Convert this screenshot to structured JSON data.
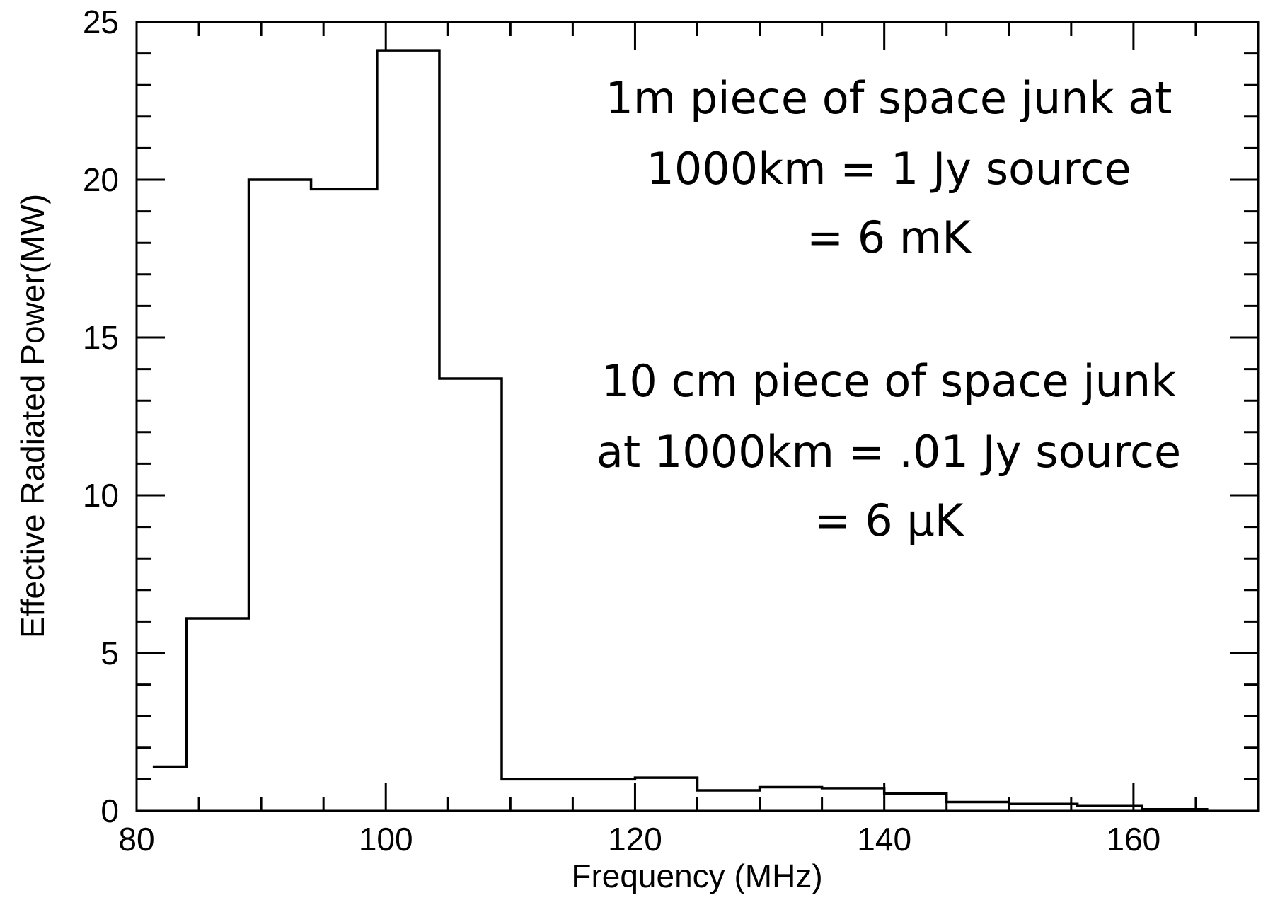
{
  "chart_data": {
    "type": "step",
    "title": "",
    "xlabel": "Frequency (MHz)",
    "ylabel": "Effective Radiated Power(MW)",
    "xlim": [
      80,
      170
    ],
    "ylim": [
      0,
      25
    ],
    "x_ticks": [
      80,
      100,
      120,
      140,
      160
    ],
    "y_ticks": [
      0,
      5,
      10,
      15,
      20,
      25
    ],
    "x_minor_step": 5,
    "y_minor_step": 1,
    "grid": false,
    "series": [
      {
        "bins": [
          {
            "x0": 81.3,
            "x1": 84,
            "y": 1.4
          },
          {
            "x0": 84,
            "x1": 89,
            "y": 6.1
          },
          {
            "x0": 89,
            "x1": 94,
            "y": 20.0
          },
          {
            "x0": 94,
            "x1": 99.3,
            "y": 19.7
          },
          {
            "x0": 99.3,
            "x1": 104.3,
            "y": 24.1
          },
          {
            "x0": 104.3,
            "x1": 109.3,
            "y": 13.7
          },
          {
            "x0": 109.3,
            "x1": 114.3,
            "y": 1.0
          },
          {
            "x0": 114.3,
            "x1": 120,
            "y": 1.0
          },
          {
            "x0": 120,
            "x1": 125,
            "y": 1.05
          },
          {
            "x0": 125,
            "x1": 130,
            "y": 0.65
          },
          {
            "x0": 130,
            "x1": 135,
            "y": 0.75
          },
          {
            "x0": 135,
            "x1": 140,
            "y": 0.72
          },
          {
            "x0": 140,
            "x1": 145,
            "y": 0.55
          },
          {
            "x0": 145,
            "x1": 150,
            "y": 0.28
          },
          {
            "x0": 150,
            "x1": 155.5,
            "y": 0.22
          },
          {
            "x0": 155.5,
            "x1": 160.7,
            "y": 0.15
          },
          {
            "x0": 160.7,
            "x1": 166,
            "y": 0.05
          }
        ]
      }
    ],
    "annotations": [
      {
        "lines": [
          "1m piece of space junk at",
          "1000km = 1 Jy source",
          "= 6 mK"
        ]
      },
      {
        "lines": [
          "10 cm piece of space junk",
          "at 1000km = .01 Jy source",
          "= 6 µK"
        ]
      }
    ]
  }
}
